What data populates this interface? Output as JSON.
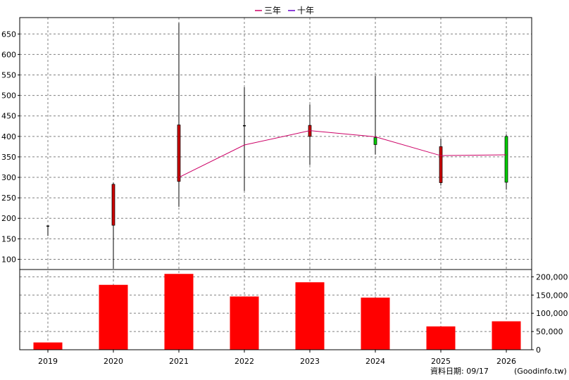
{
  "chart_data": {
    "type": "candlestick+line+bar",
    "categories": [
      "2019",
      "2020",
      "2021",
      "2022",
      "2023",
      "2024",
      "2025",
      "2026"
    ],
    "candles": [
      {
        "year": "2019",
        "open": 181,
        "close": 180,
        "high": 182,
        "low": 157
      },
      {
        "year": "2020",
        "open": 183,
        "close": 283,
        "high": 287,
        "low": 77
      },
      {
        "year": "2021",
        "open": 290,
        "close": 428,
        "high": 677,
        "low": 228
      },
      {
        "year": "2022",
        "open": 425,
        "close": 426,
        "high": 520,
        "low": 267
      },
      {
        "year": "2023",
        "open": 400,
        "close": 427,
        "high": 478,
        "low": 330
      },
      {
        "year": "2024",
        "open": 397,
        "close": 380,
        "high": 548,
        "low": 356
      },
      {
        "year": "2025",
        "open": 287,
        "close": 375,
        "high": 395,
        "low": 280
      },
      {
        "year": "2026",
        "open": 400,
        "close": 288,
        "high": 405,
        "low": 270
      }
    ],
    "series": [
      {
        "name": "三年",
        "color": "#cc0066",
        "values": [
          null,
          null,
          300,
          379,
          414,
          399,
          353,
          355
        ]
      },
      {
        "name": "十年",
        "color": "#6600cc",
        "values": [
          null,
          null,
          null,
          null,
          null,
          null,
          null,
          null
        ]
      }
    ],
    "volume": [
      20000,
      178000,
      208000,
      146000,
      185000,
      143000,
      64000,
      78000
    ],
    "price_axis": {
      "min": 75,
      "max": 690,
      "ticks": [
        100,
        150,
        200,
        250,
        300,
        350,
        400,
        450,
        500,
        550,
        600,
        650
      ]
    },
    "volume_axis": {
      "min": 0,
      "max": 220000,
      "ticks": [
        0,
        50000,
        100000,
        150000,
        200000
      ],
      "tick_labels": [
        "0",
        "50,000",
        "100,000",
        "150,000",
        "200,000"
      ]
    },
    "colors": {
      "up": "#cc0000",
      "down": "#00cc00",
      "volume": "#ff0000",
      "grid": "#808080"
    },
    "grid": true,
    "legend_position": "top-center"
  },
  "footer": {
    "date_label": "資料日期: 09/17",
    "source": "(Goodinfo.tw)"
  }
}
